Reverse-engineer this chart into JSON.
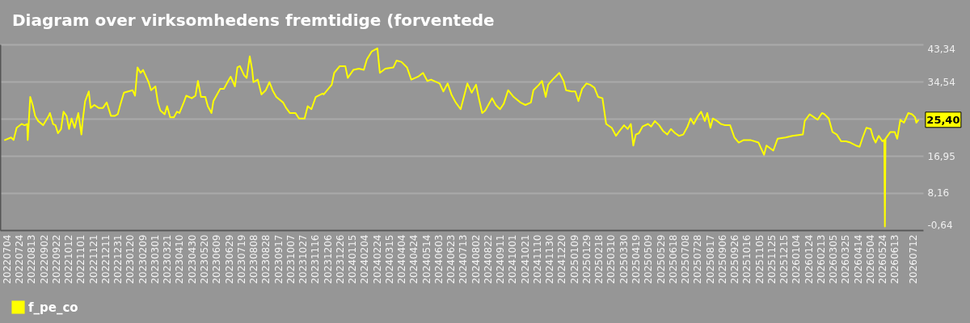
{
  "chart_data": {
    "type": "line",
    "title": "Diagram over virksomhedens fremtidige (forventede",
    "x": [
      "2022-07-01",
      "2022-07-11",
      "2022-07-15",
      "2022-07-20",
      "2022-07-28",
      "2022-08-02",
      "2022-08-06",
      "2022-08-07",
      "2022-08-11",
      "2022-08-15",
      "2022-08-19",
      "2022-08-24",
      "2022-09-01",
      "2022-09-10",
      "2022-09-12",
      "2022-09-17",
      "2022-09-21",
      "2022-09-25",
      "2022-09-30",
      "2022-10-04",
      "2022-10-09",
      "2022-10-13",
      "2022-10-17",
      "2022-10-22",
      "2022-10-28",
      "2022-11-02",
      "2022-11-04",
      "2022-11-08",
      "2022-11-14",
      "2022-11-17",
      "2022-11-23",
      "2022-11-30",
      "2022-12-07",
      "2022-12-13",
      "2022-12-20",
      "2022-12-26",
      "2022-12-31",
      "2023-01-04",
      "2023-01-10",
      "2023-01-17",
      "2023-01-24",
      "2023-01-28",
      "2023-02-01",
      "2023-02-06",
      "2023-02-10",
      "2023-02-14",
      "2023-02-19",
      "2023-02-23",
      "2023-03-02",
      "2023-03-06",
      "2023-03-10",
      "2023-03-17",
      "2023-03-21",
      "2023-03-26",
      "2023-04-01",
      "2023-04-06",
      "2023-04-10",
      "2023-04-17",
      "2023-04-21",
      "2023-04-30",
      "2023-05-06",
      "2023-05-10",
      "2023-05-15",
      "2023-05-22",
      "2023-05-26",
      "2023-06-01",
      "2023-06-04",
      "2023-06-10",
      "2023-06-15",
      "2023-06-21",
      "2023-06-28",
      "2023-07-02",
      "2023-07-09",
      "2023-07-13",
      "2023-07-17",
      "2023-07-24",
      "2023-07-28",
      "2023-08-02",
      "2023-08-06",
      "2023-08-08",
      "2023-08-15",
      "2023-08-21",
      "2023-08-28",
      "2023-09-03",
      "2023-09-08",
      "2023-09-14",
      "2023-09-25",
      "2023-09-30",
      "2023-10-06",
      "2023-10-15",
      "2023-10-21",
      "2023-10-30",
      "2023-11-04",
      "2023-11-10",
      "2023-11-17",
      "2023-11-28",
      "2023-11-30",
      "2023-12-13",
      "2023-12-17",
      "2023-12-26",
      "2024-01-04",
      "2024-01-08",
      "2024-01-17",
      "2024-01-26",
      "2024-02-03",
      "2024-02-08",
      "2024-02-16",
      "2024-02-25",
      "2024-02-29",
      "2024-03-09",
      "2024-03-22",
      "2024-03-27",
      "2024-04-04",
      "2024-04-13",
      "2024-04-20",
      "2024-05-01",
      "2024-05-09",
      "2024-05-16",
      "2024-05-22",
      "2024-06-05",
      "2024-06-11",
      "2024-06-18",
      "2024-06-24",
      "2024-07-01",
      "2024-07-09",
      "2024-07-20",
      "2024-07-27",
      "2024-08-03",
      "2024-08-07",
      "2024-08-13",
      "2024-08-18",
      "2024-08-29",
      "2024-09-04",
      "2024-09-11",
      "2024-09-17",
      "2024-09-24",
      "2024-10-03",
      "2024-10-14",
      "2024-10-22",
      "2024-10-31",
      "2024-11-04",
      "2024-11-13",
      "2024-11-18",
      "2024-11-24",
      "2024-11-28",
      "2024-12-05",
      "2024-12-16",
      "2024-12-23",
      "2024-12-27",
      "2025-01-05",
      "2025-01-11",
      "2025-01-16",
      "2025-01-22",
      "2025-01-29",
      "2025-02-04",
      "2025-02-11",
      "2025-02-17",
      "2025-02-24",
      "2025-03-02",
      "2025-03-11",
      "2025-03-18",
      "2025-03-24",
      "2025-03-31",
      "2025-04-06",
      "2025-04-11",
      "2025-04-15",
      "2025-04-19",
      "2025-04-24",
      "2025-04-30",
      "2025-05-09",
      "2025-05-14",
      "2025-05-20",
      "2025-05-27",
      "2025-06-02",
      "2025-06-09",
      "2025-06-15",
      "2025-06-22",
      "2025-06-28",
      "2025-07-05",
      "2025-07-12",
      "2025-07-17",
      "2025-07-22",
      "2025-07-29",
      "2025-08-03",
      "2025-08-09",
      "2025-08-13",
      "2025-08-18",
      "2025-08-22",
      "2025-08-29",
      "2025-09-04",
      "2025-09-11",
      "2025-09-19",
      "2025-09-26",
      "2025-10-03",
      "2025-10-11",
      "2025-10-22",
      "2025-11-04",
      "2025-11-13",
      "2025-11-17",
      "2025-11-28",
      "2025-12-05",
      "2025-12-18",
      "2025-12-29",
      "2026-01-15",
      "2026-01-18",
      "2026-01-26",
      "2026-02-02",
      "2026-02-08",
      "2026-02-15",
      "2026-02-19",
      "2026-02-26",
      "2026-03-04",
      "2026-03-11",
      "2026-03-18",
      "2026-03-26",
      "2026-04-02",
      "2026-04-11",
      "2026-04-17",
      "2026-04-22",
      "2026-04-28",
      "2026-05-05",
      "2026-05-09",
      "2026-05-13",
      "2026-05-18",
      "2026-05-24",
      "2026-05-27",
      "2026-05-28",
      "2026-05-29",
      "2026-06-06",
      "2026-06-13",
      "2026-06-17",
      "2026-06-22",
      "2026-06-28",
      "2026-07-05",
      "2026-07-11",
      "2026-07-16",
      "2026-07-18",
      "2026-07-21"
    ],
    "series": [
      {
        "name": "f_pe_co",
        "color": "#ffff00",
        "values": [
          20.7,
          21.3,
          20.7,
          23.6,
          24.5,
          24.2,
          24.5,
          20.7,
          30.9,
          29.0,
          26.4,
          25.2,
          24.2,
          26.4,
          27.1,
          24.5,
          24.2,
          22.3,
          23.3,
          27.4,
          26.4,
          23.3,
          25.8,
          23.6,
          27.1,
          22.0,
          25.2,
          29.9,
          32.2,
          28.3,
          29.0,
          28.3,
          28.3,
          29.6,
          26.4,
          26.4,
          26.8,
          29.0,
          31.9,
          32.2,
          32.5,
          31.2,
          37.9,
          36.6,
          37.3,
          36.0,
          34.4,
          32.5,
          33.4,
          29.6,
          27.7,
          26.8,
          28.7,
          26.1,
          26.1,
          27.4,
          27.1,
          29.6,
          31.2,
          30.6,
          31.2,
          34.7,
          30.9,
          30.9,
          28.7,
          27.1,
          29.9,
          31.5,
          32.8,
          32.8,
          34.7,
          35.7,
          33.4,
          37.9,
          38.2,
          36.0,
          35.4,
          40.5,
          37.3,
          34.4,
          35.0,
          31.5,
          32.5,
          34.4,
          32.5,
          30.9,
          29.6,
          28.3,
          27.1,
          27.1,
          25.8,
          25.8,
          28.7,
          28.0,
          30.9,
          31.7,
          31.5,
          33.8,
          36.6,
          38.2,
          38.2,
          35.4,
          37.3,
          37.6,
          37.3,
          39.8,
          41.7,
          42.4,
          36.6,
          37.6,
          37.9,
          39.5,
          39.2,
          37.9,
          35.0,
          35.7,
          36.6,
          34.7,
          35.0,
          34.1,
          32.2,
          34.1,
          31.5,
          29.6,
          28.0,
          34.1,
          31.9,
          33.8,
          30.9,
          27.1,
          27.7,
          30.6,
          29.0,
          28.0,
          29.3,
          32.5,
          30.9,
          29.6,
          29.0,
          29.6,
          32.5,
          33.8,
          34.7,
          30.9,
          33.8,
          35.0,
          36.6,
          34.7,
          32.5,
          32.2,
          32.2,
          29.9,
          32.8,
          34.1,
          33.8,
          33.1,
          30.9,
          30.6,
          24.5,
          23.6,
          21.7,
          22.9,
          24.2,
          23.3,
          24.5,
          19.4,
          22.0,
          22.3,
          23.9,
          24.5,
          23.9,
          25.2,
          24.2,
          22.9,
          22.0,
          23.3,
          22.3,
          21.7,
          22.0,
          23.9,
          25.8,
          24.5,
          26.4,
          27.4,
          25.2,
          27.1,
          23.6,
          25.8,
          25.2,
          24.5,
          24.2,
          24.2,
          21.3,
          20.1,
          20.7,
          20.7,
          20.1,
          17.2,
          19.4,
          18.2,
          21.0,
          21.3,
          21.7,
          22.0,
          25.2,
          26.8,
          26.1,
          25.5,
          27.1,
          26.8,
          25.8,
          22.6,
          22.0,
          20.4,
          20.4,
          20.1,
          19.4,
          19.1,
          21.3,
          23.6,
          23.3,
          21.3,
          20.1,
          21.7,
          20.4,
          20.7,
          0.2,
          21.0,
          22.6,
          22.6,
          21.0,
          25.5,
          24.8,
          27.1,
          26.8,
          26.1,
          24.8,
          25.4
        ]
      }
    ],
    "xlim": [
      "2022-06-23",
      "2026-07-29"
    ],
    "xticks": [
      {
        "value": "2022-07-04",
        "label": "20220704"
      },
      {
        "value": "2022-07-24",
        "label": "20220724"
      },
      {
        "value": "2022-08-13",
        "label": "20220813"
      },
      {
        "value": "2022-09-02",
        "label": "20220902"
      },
      {
        "value": "2022-09-22",
        "label": "20220922"
      },
      {
        "value": "2022-10-12",
        "label": "20221012"
      },
      {
        "value": "2022-11-01",
        "label": "20221101"
      },
      {
        "value": "2022-11-21",
        "label": "20221121"
      },
      {
        "value": "2022-12-11",
        "label": "20221211"
      },
      {
        "value": "2022-12-31",
        "label": "20221231"
      },
      {
        "value": "2023-01-20",
        "label": "20230120"
      },
      {
        "value": "2023-02-09",
        "label": "20230209"
      },
      {
        "value": "2023-03-01",
        "label": "20230301"
      },
      {
        "value": "2023-03-21",
        "label": "20230321"
      },
      {
        "value": "2023-04-10",
        "label": "20230410"
      },
      {
        "value": "2023-04-30",
        "label": "20230430"
      },
      {
        "value": "2023-05-20",
        "label": "20230520"
      },
      {
        "value": "2023-06-09",
        "label": "20230609"
      },
      {
        "value": "2023-06-29",
        "label": "20230629"
      },
      {
        "value": "2023-07-19",
        "label": "20230719"
      },
      {
        "value": "2023-08-08",
        "label": "20230808"
      },
      {
        "value": "2023-08-28",
        "label": "20230828"
      },
      {
        "value": "2023-09-17",
        "label": "20230917"
      },
      {
        "value": "2023-10-07",
        "label": "20231007"
      },
      {
        "value": "2023-10-27",
        "label": "20231027"
      },
      {
        "value": "2023-11-16",
        "label": "20231116"
      },
      {
        "value": "2023-12-06",
        "label": "20231206"
      },
      {
        "value": "2023-12-26",
        "label": "20231226"
      },
      {
        "value": "2024-01-15",
        "label": "20240115"
      },
      {
        "value": "2024-02-04",
        "label": "20240204"
      },
      {
        "value": "2024-02-24",
        "label": "20240224"
      },
      {
        "value": "2024-03-15",
        "label": "20240315"
      },
      {
        "value": "2024-04-04",
        "label": "20240404"
      },
      {
        "value": "2024-04-24",
        "label": "20240424"
      },
      {
        "value": "2024-05-14",
        "label": "20240514"
      },
      {
        "value": "2024-06-03",
        "label": "20240603"
      },
      {
        "value": "2024-06-23",
        "label": "20240623"
      },
      {
        "value": "2024-07-13",
        "label": "20240713"
      },
      {
        "value": "2024-08-02",
        "label": "20240802"
      },
      {
        "value": "2024-08-22",
        "label": "20240822"
      },
      {
        "value": "2024-09-11",
        "label": "20240911"
      },
      {
        "value": "2024-10-01",
        "label": "20241001"
      },
      {
        "value": "2024-10-21",
        "label": "20241021"
      },
      {
        "value": "2024-11-10",
        "label": "20241110"
      },
      {
        "value": "2024-11-30",
        "label": "20241130"
      },
      {
        "value": "2024-12-20",
        "label": "20241220"
      },
      {
        "value": "2025-01-09",
        "label": "20250109"
      },
      {
        "value": "2025-01-29",
        "label": "20250129"
      },
      {
        "value": "2025-02-18",
        "label": "20250218"
      },
      {
        "value": "2025-03-10",
        "label": "20250310"
      },
      {
        "value": "2025-03-30",
        "label": "20250330"
      },
      {
        "value": "2025-04-19",
        "label": "20250419"
      },
      {
        "value": "2025-05-09",
        "label": "20250509"
      },
      {
        "value": "2025-05-29",
        "label": "20250529"
      },
      {
        "value": "2025-06-18",
        "label": "20250618"
      },
      {
        "value": "2025-07-08",
        "label": "20250708"
      },
      {
        "value": "2025-07-28",
        "label": "20250728"
      },
      {
        "value": "2025-08-17",
        "label": "20250817"
      },
      {
        "value": "2025-09-06",
        "label": "20250906"
      },
      {
        "value": "2025-09-26",
        "label": "20250926"
      },
      {
        "value": "2025-10-16",
        "label": "20251016"
      },
      {
        "value": "2025-11-05",
        "label": "20251105"
      },
      {
        "value": "2025-11-25",
        "label": "20251125"
      },
      {
        "value": "2025-12-15",
        "label": "20251215"
      },
      {
        "value": "2026-01-04",
        "label": "20260104"
      },
      {
        "value": "2026-01-24",
        "label": "20260124"
      },
      {
        "value": "2026-02-13",
        "label": "20260213"
      },
      {
        "value": "2026-03-05",
        "label": "20260305"
      },
      {
        "value": "2026-03-25",
        "label": "20260325"
      },
      {
        "value": "2026-04-14",
        "label": "20260414"
      },
      {
        "value": "2026-05-04",
        "label": "20260504"
      },
      {
        "value": "2026-05-24",
        "label": "20260524"
      },
      {
        "value": "2026-06-13",
        "label": "20260613"
      },
      {
        "value": "2026-07-12",
        "label": "20260712"
      }
    ],
    "ylim": [
      -0.64,
      43.34
    ],
    "yticks": [
      {
        "value": -0.64,
        "label": "-0,64"
      },
      {
        "value": 8.16,
        "label": "8,16"
      },
      {
        "value": 16.95,
        "label": "16,95"
      },
      {
        "value": 25.74,
        "label": null
      },
      {
        "value": 34.54,
        "label": "34,54"
      },
      {
        "value": 43.34,
        "label": "43,34"
      }
    ],
    "annotations": [
      {
        "text": "25,40",
        "x": "2026-07-21",
        "y": 25.4
      }
    ],
    "grid": "y",
    "legend": "bottom left"
  }
}
